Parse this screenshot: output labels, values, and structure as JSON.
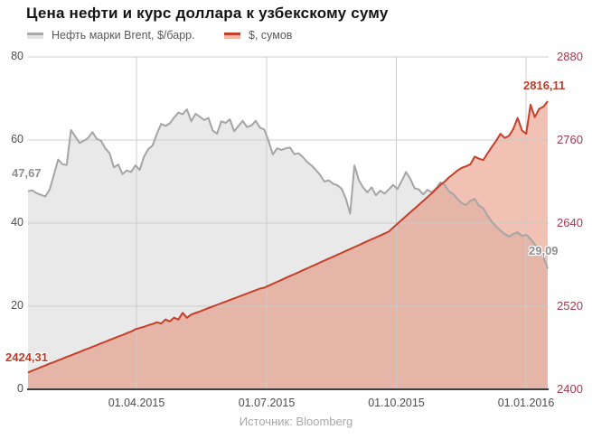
{
  "title": "Цена нефти и курс доллара к узбекскому суму",
  "legend": {
    "items": [
      {
        "label": "Нефть марки Brent, $/барр.",
        "line_color": "#a8a8a8",
        "fill_color": "#e2e2e2"
      },
      {
        "label": "$, сумов",
        "line_color": "#c5402a",
        "fill_color": "#f3b7a6"
      }
    ]
  },
  "source": "Источник: Bloomberg",
  "colors": {
    "background": "#ffffff",
    "title": "#141414",
    "legend_text": "#595959",
    "grid": "#cccccc",
    "axis_line": "#3d3d3d",
    "left_tick_text": "#4d4d4d",
    "right_tick_text": "#a23a50",
    "date_tick_text": "#4d4d4d",
    "brent_line": "#a5a5a5",
    "brent_fill": "#e9e9e9",
    "brent_label": "#8f8f8f",
    "usd_line": "#c5402a",
    "usd_fill": "rgba(224,118,88,0.45)",
    "usd_label": "#c23a26",
    "source_text": "#a8a8a8"
  },
  "chart_data": {
    "type": "area",
    "title": "Цена нефти и курс доллара к узбекскому суму",
    "grid": true,
    "legend_position": "top-left",
    "x_tick_labels": [
      "01.04.2015",
      "01.07.2015",
      "01.10.2015",
      "01.01.2016"
    ],
    "left_axis": {
      "label": "Нефть марки Brent, $/барр.",
      "ticks": [
        "80",
        "60",
        "40",
        "20",
        "0"
      ],
      "range": [
        0,
        80
      ]
    },
    "right_axis": {
      "label": "$, сумов",
      "ticks": [
        "2880",
        "2760",
        "2640",
        "2520",
        "2400"
      ],
      "range": [
        2400,
        2880
      ]
    },
    "series": [
      {
        "name": "Нефть марки Brent, $/барр.",
        "axis": "left",
        "color": "#a5a5a5",
        "fill": "#e9e9e9",
        "start_label": "47,67",
        "end_label": "29,09",
        "start_value": 47.67,
        "end_value": 29.09,
        "values": [
          47.67,
          47.9,
          47.2,
          46.8,
          46.4,
          48.0,
          51.5,
          55.3,
          54.2,
          54.0,
          62.4,
          60.9,
          59.3,
          59.8,
          60.5,
          61.9,
          60.3,
          59.8,
          58.0,
          56.8,
          53.4,
          54.1,
          51.8,
          52.7,
          52.3,
          53.9,
          52.8,
          56.0,
          57.8,
          58.7,
          61.5,
          63.9,
          63.4,
          64.0,
          65.4,
          66.6,
          66.2,
          67.4,
          64.5,
          66.3,
          65.6,
          64.8,
          65.3,
          62.3,
          61.5,
          64.5,
          64.1,
          65.0,
          62.1,
          63.4,
          64.6,
          63.1,
          63.5,
          64.6,
          63.0,
          62.5,
          59.8,
          56.5,
          58.0,
          57.6,
          58.0,
          58.2,
          56.6,
          56.8,
          55.9,
          54.7,
          53.9,
          52.8,
          51.6,
          50.0,
          50.3,
          49.5,
          49.1,
          48.3,
          45.9,
          42.3,
          53.9,
          50.4,
          48.6,
          47.4,
          48.6,
          46.7,
          47.8,
          47.1,
          48.1,
          49.2,
          48.2,
          50.1,
          52.3,
          50.7,
          48.4,
          48.1,
          46.9,
          48.0,
          47.4,
          48.3,
          49.8,
          49.2,
          47.6,
          47.0,
          45.8,
          44.8,
          44.4,
          45.4,
          45.8,
          44.2,
          43.6,
          41.8,
          40.3,
          39.2,
          38.2,
          37.4,
          36.8,
          37.4,
          37.8,
          36.9,
          37.2,
          36.2,
          34.9,
          33.5,
          31.8,
          29.09
        ]
      },
      {
        "name": "$, сумов",
        "axis": "right",
        "color": "#c5402a",
        "fill": "rgba(224,118,88,0.45)",
        "start_label": "2424,31",
        "end_label": "2816,11",
        "start_value": 2424.31,
        "end_value": 2816.11,
        "values": [
          2424.31,
          2427.0,
          2429.3,
          2432.1,
          2434.3,
          2437.0,
          2439.2,
          2441.9,
          2444.1,
          2446.8,
          2449.0,
          2451.7,
          2453.9,
          2456.6,
          2458.8,
          2461.5,
          2463.7,
          2466.4,
          2468.6,
          2471.3,
          2473.5,
          2476.2,
          2478.4,
          2481.1,
          2483.3,
          2486.7,
          2488.5,
          2490.2,
          2492.6,
          2494.3,
          2496.8,
          2494.9,
          2500.8,
          2497.9,
          2503.6,
          2500.7,
          2510.5,
          2503.3,
          2508.0,
          2510.2,
          2512.5,
          2514.9,
          2517.2,
          2519.6,
          2521.9,
          2524.3,
          2526.6,
          2529.0,
          2531.3,
          2533.7,
          2536.0,
          2538.4,
          2540.7,
          2543.1,
          2545.4,
          2546.8,
          2549.6,
          2552.4,
          2555.2,
          2558.0,
          2560.8,
          2563.5,
          2566.3,
          2569.1,
          2571.9,
          2574.7,
          2577.5,
          2580.3,
          2583.1,
          2585.9,
          2588.7,
          2591.4,
          2594.2,
          2597.0,
          2599.8,
          2602.6,
          2605.4,
          2608.2,
          2611.0,
          2613.8,
          2616.6,
          2619.3,
          2622.1,
          2624.9,
          2627.7,
          2633.5,
          2639.0,
          2644.5,
          2650.0,
          2655.5,
          2661.0,
          2666.5,
          2672.0,
          2677.5,
          2683.0,
          2689.0,
          2695.0,
          2700.0,
          2706.0,
          2711.0,
          2716.0,
          2720.0,
          2722.0,
          2725.0,
          2736.0,
          2733.0,
          2731.0,
          2741.0,
          2750.0,
          2759.0,
          2769.0,
          2763.0,
          2766.0,
          2776.0,
          2792.0,
          2774.0,
          2769.0,
          2811.0,
          2793.0,
          2805.0,
          2808.0,
          2816.11
        ]
      }
    ]
  }
}
